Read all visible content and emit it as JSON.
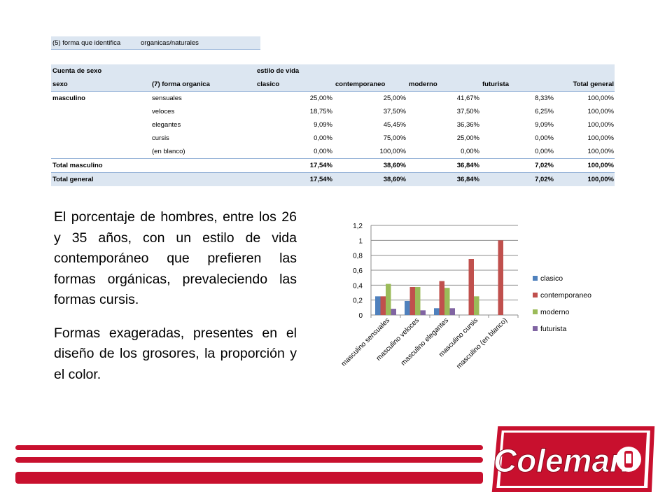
{
  "filter": {
    "label": "(5) forma que identifica",
    "value": "organicas/naturales"
  },
  "pivot": {
    "header1": {
      "measure": "Cuenta de sexo",
      "column_field": "estilo de vida"
    },
    "header2": [
      "sexo",
      "(7) forma organica",
      "clasico",
      "contemporaneo",
      "moderno",
      "futurista",
      "Total general"
    ],
    "group_label": "masculino",
    "rows": [
      {
        "label": "sensuales",
        "values": [
          "25,00%",
          "25,00%",
          "41,67%",
          "8,33%",
          "100,00%"
        ]
      },
      {
        "label": "veloces",
        "values": [
          "18,75%",
          "37,50%",
          "37,50%",
          "6,25%",
          "100,00%"
        ]
      },
      {
        "label": "elegantes",
        "values": [
          "9,09%",
          "45,45%",
          "36,36%",
          "9,09%",
          "100,00%"
        ]
      },
      {
        "label": "cursis",
        "values": [
          "0,00%",
          "75,00%",
          "25,00%",
          "0,00%",
          "100,00%"
        ]
      },
      {
        "label": "(en blanco)",
        "values": [
          "0,00%",
          "100,00%",
          "0,00%",
          "0,00%",
          "100,00%"
        ]
      }
    ],
    "total_masculino": {
      "label": "Total masculino",
      "values": [
        "17,54%",
        "38,60%",
        "36,84%",
        "7,02%",
        "100,00%"
      ]
    },
    "total_general": {
      "label": "Total general",
      "values": [
        "17,54%",
        "38,60%",
        "36,84%",
        "7,02%",
        "100,00%"
      ]
    }
  },
  "text": {
    "p1": "El porcentaje de hombres, entre los 26 y 35 años, con un estilo de vida contemporáneo que prefieren las formas orgánicas, prevaleciendo las formas cursis.",
    "p2": "Formas exageradas, presentes en el diseño de los grosores, la proporción y el color."
  },
  "chart_data": {
    "type": "bar",
    "categories": [
      "masculino sensuales",
      "masculino veloces",
      "masculino elegantes",
      "masculino cursis",
      "masculino (en blanco)"
    ],
    "series": [
      {
        "name": "clasico",
        "color": "#4f81bd",
        "values": [
          0.25,
          0.1875,
          0.0909,
          0,
          0
        ]
      },
      {
        "name": "contemporaneo",
        "color": "#c0504d",
        "values": [
          0.25,
          0.375,
          0.4545,
          0.75,
          1.0
        ]
      },
      {
        "name": "moderno",
        "color": "#9bbb59",
        "values": [
          0.4167,
          0.375,
          0.3636,
          0.25,
          0
        ]
      },
      {
        "name": "futurista",
        "color": "#8064a2",
        "values": [
          0.0833,
          0.0625,
          0.0909,
          0,
          0
        ]
      }
    ],
    "ylim": [
      0,
      1.2
    ],
    "yticks": [
      "0",
      "0,2",
      "0,4",
      "0,6",
      "0,8",
      "1",
      "1,2"
    ],
    "grid": true,
    "legend": "right"
  },
  "brand": {
    "logo_text": "Coleman",
    "accent": "#c8102e"
  }
}
